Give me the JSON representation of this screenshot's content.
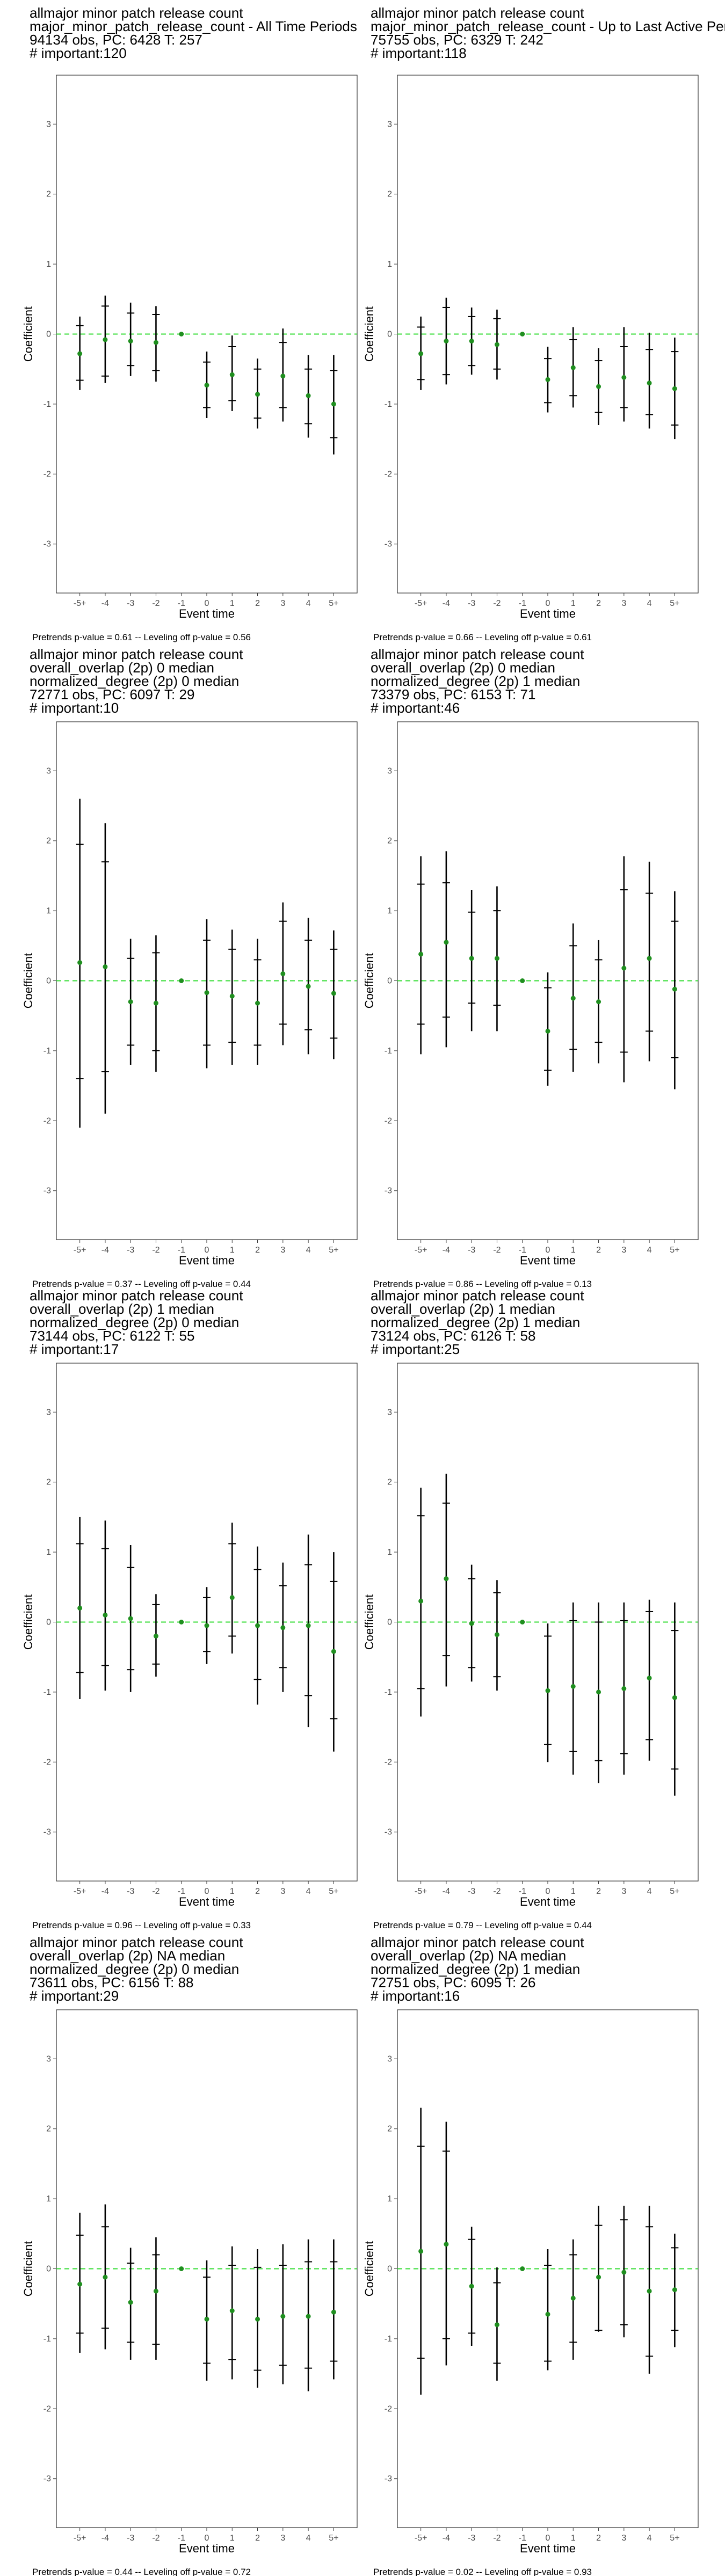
{
  "chart_data": [
    {
      "type": "scatter",
      "title_lines": [
        " allmajor minor patch release count",
        "major_minor_patch_release_count - All Time Periods",
        "94134 obs, PC: 6428 T: 257",
        "# important:120"
      ],
      "xlabel": "Event time",
      "ylabel": "Coefficient",
      "categories": [
        "-5+",
        "-4",
        "-3",
        "-2",
        "-1",
        "0",
        "1",
        "2",
        "3",
        "4",
        "5+"
      ],
      "yticks": [
        "-3",
        "-2",
        "-1",
        "0",
        "1",
        "2",
        "3"
      ],
      "ylim": [
        -3.7,
        3.7
      ],
      "caption": "Pretrends p-value = 0.61 -- Leveling off p-value = 0.56",
      "estimates": [
        -0.28,
        -0.08,
        -0.1,
        -0.12,
        0.0,
        -0.73,
        -0.58,
        -0.86,
        -0.6,
        -0.88,
        -1.0
      ],
      "ci_outer_low": [
        -0.8,
        -0.7,
        -0.6,
        -0.68,
        0.0,
        -1.2,
        -1.1,
        -1.35,
        -1.25,
        -1.48,
        -1.72
      ],
      "ci_outer_high": [
        0.25,
        0.55,
        0.45,
        0.4,
        0.0,
        -0.25,
        -0.02,
        -0.35,
        0.08,
        -0.3,
        -0.3
      ],
      "ci_inner_low": [
        -0.66,
        -0.6,
        -0.45,
        -0.52,
        0.0,
        -1.05,
        -0.95,
        -1.2,
        -1.05,
        -1.28,
        -1.48
      ],
      "ci_inner_high": [
        0.12,
        0.4,
        0.3,
        0.28,
        0.0,
        -0.4,
        -0.18,
        -0.5,
        -0.12,
        -0.5,
        -0.52
      ]
    },
    {
      "type": "scatter",
      "title_lines": [
        " allmajor minor patch release count",
        "major_minor_patch_release_count - Up to Last Active Period",
        "75755 obs, PC: 6329 T: 242",
        "# important:118"
      ],
      "xlabel": "Event time",
      "ylabel": "Coefficient",
      "categories": [
        "-5+",
        "-4",
        "-3",
        "-2",
        "-1",
        "0",
        "1",
        "2",
        "3",
        "4",
        "5+"
      ],
      "yticks": [
        "-3",
        "-2",
        "-1",
        "0",
        "1",
        "2",
        "3"
      ],
      "ylim": [
        -3.7,
        3.7
      ],
      "caption": "Pretrends p-value = 0.66 -- Leveling off p-value = 0.61",
      "estimates": [
        -0.28,
        -0.1,
        -0.1,
        -0.15,
        0.0,
        -0.65,
        -0.48,
        -0.75,
        -0.62,
        -0.7,
        -0.78
      ],
      "ci_outer_low": [
        -0.8,
        -0.72,
        -0.58,
        -0.65,
        0.0,
        -1.12,
        -1.05,
        -1.3,
        -1.25,
        -1.35,
        -1.5
      ],
      "ci_outer_high": [
        0.25,
        0.52,
        0.38,
        0.35,
        0.0,
        -0.18,
        0.1,
        -0.2,
        0.1,
        0.02,
        -0.05
      ],
      "ci_inner_low": [
        -0.65,
        -0.58,
        -0.45,
        -0.5,
        0.0,
        -0.98,
        -0.88,
        -1.12,
        -1.05,
        -1.15,
        -1.3
      ],
      "ci_inner_high": [
        0.1,
        0.38,
        0.25,
        0.22,
        0.0,
        -0.35,
        -0.08,
        -0.38,
        -0.18,
        -0.22,
        -0.25
      ]
    },
    {
      "type": "scatter",
      "title_lines": [
        " allmajor minor patch release count",
        "overall_overlap (2p) 0 median",
        "normalized_degree (2p) 0 median",
        "72771 obs, PC: 6097 T: 29",
        "# important:10"
      ],
      "xlabel": "Event time",
      "ylabel": "Coefficient",
      "categories": [
        "-5+",
        "-4",
        "-3",
        "-2",
        "-1",
        "0",
        "1",
        "2",
        "3",
        "4",
        "5+"
      ],
      "yticks": [
        "-3",
        "-2",
        "-1",
        "0",
        "1",
        "2",
        "3"
      ],
      "ylim": [
        -3.7,
        3.7
      ],
      "caption": "Pretrends p-value = 0.37 -- Leveling off p-value = 0.44",
      "estimates": [
        0.26,
        0.2,
        -0.3,
        -0.32,
        0.0,
        -0.17,
        -0.22,
        -0.32,
        0.1,
        -0.08,
        -0.18
      ],
      "ci_outer_low": [
        -2.1,
        -1.9,
        -1.2,
        -1.3,
        0.0,
        -1.25,
        -1.2,
        -1.2,
        -0.92,
        -1.05,
        -1.12
      ],
      "ci_outer_high": [
        2.6,
        2.25,
        0.6,
        0.65,
        0.0,
        0.88,
        0.73,
        0.6,
        1.12,
        0.9,
        0.72
      ],
      "ci_inner_low": [
        -1.4,
        -1.3,
        -0.92,
        -1.0,
        0.0,
        -0.92,
        -0.88,
        -0.92,
        -0.62,
        -0.7,
        -0.82
      ],
      "ci_inner_high": [
        1.95,
        1.7,
        0.32,
        0.4,
        0.0,
        0.58,
        0.45,
        0.3,
        0.85,
        0.58,
        0.45
      ]
    },
    {
      "type": "scatter",
      "title_lines": [
        " allmajor minor patch release count",
        "overall_overlap (2p) 0 median",
        "normalized_degree (2p) 1 median",
        "73379 obs, PC: 6153 T: 71",
        "# important:46"
      ],
      "xlabel": "Event time",
      "ylabel": "Coefficient",
      "categories": [
        "-5+",
        "-4",
        "-3",
        "-2",
        "-1",
        "0",
        "1",
        "2",
        "3",
        "4",
        "5+"
      ],
      "yticks": [
        "-3",
        "-2",
        "-1",
        "0",
        "1",
        "2",
        "3"
      ],
      "ylim": [
        -3.7,
        3.7
      ],
      "caption": "Pretrends p-value = 0.86 -- Leveling off p-value = 0.13",
      "estimates": [
        0.38,
        0.55,
        0.32,
        0.32,
        0.0,
        -0.72,
        -0.25,
        -0.3,
        0.18,
        0.32,
        -0.12
      ],
      "ci_outer_low": [
        -1.05,
        -0.95,
        -0.72,
        -0.72,
        0.0,
        -1.5,
        -1.3,
        -1.18,
        -1.45,
        -1.15,
        -1.55
      ],
      "ci_outer_high": [
        1.78,
        1.85,
        1.3,
        1.35,
        0.0,
        0.12,
        0.82,
        0.58,
        1.78,
        1.7,
        1.28
      ],
      "ci_inner_low": [
        -0.62,
        -0.52,
        -0.32,
        -0.35,
        0.0,
        -1.28,
        -0.98,
        -0.88,
        -1.02,
        -0.72,
        -1.1
      ],
      "ci_inner_high": [
        1.38,
        1.4,
        0.98,
        1.0,
        0.0,
        -0.1,
        0.5,
        0.3,
        1.3,
        1.25,
        0.85
      ]
    },
    {
      "type": "scatter",
      "title_lines": [
        " allmajor minor patch release count",
        "overall_overlap (2p) 1 median",
        "normalized_degree (2p) 0 median",
        "73144 obs, PC: 6122 T: 55",
        "# important:17"
      ],
      "xlabel": "Event time",
      "ylabel": "Coefficient",
      "categories": [
        "-5+",
        "-4",
        "-3",
        "-2",
        "-1",
        "0",
        "1",
        "2",
        "3",
        "4",
        "5+"
      ],
      "yticks": [
        "-3",
        "-2",
        "-1",
        "0",
        "1",
        "2",
        "3"
      ],
      "ylim": [
        -3.7,
        3.7
      ],
      "caption": "Pretrends p-value = 0.96 -- Leveling off p-value = 0.33",
      "estimates": [
        0.2,
        0.1,
        0.05,
        -0.2,
        0.0,
        -0.05,
        0.35,
        -0.05,
        -0.08,
        -0.05,
        -0.42
      ],
      "ci_outer_low": [
        -1.1,
        -0.98,
        -1.0,
        -0.78,
        0.0,
        -0.6,
        -0.45,
        -1.18,
        -1.0,
        -1.5,
        -1.85
      ],
      "ci_outer_high": [
        1.5,
        1.45,
        1.1,
        0.4,
        0.0,
        0.5,
        1.42,
        1.08,
        0.85,
        1.25,
        1.0
      ],
      "ci_inner_low": [
        -0.72,
        -0.62,
        -0.68,
        -0.6,
        0.0,
        -0.42,
        -0.2,
        -0.82,
        -0.65,
        -1.05,
        -1.38
      ],
      "ci_inner_high": [
        1.12,
        1.05,
        0.78,
        0.25,
        0.0,
        0.35,
        1.12,
        0.75,
        0.52,
        0.82,
        0.58
      ]
    },
    {
      "type": "scatter",
      "title_lines": [
        " allmajor minor patch release count",
        "overall_overlap (2p) 1 median",
        "normalized_degree (2p) 1 median",
        "73124 obs, PC: 6126 T: 58",
        "# important:25"
      ],
      "xlabel": "Event time",
      "ylabel": "Coefficient",
      "categories": [
        "-5+",
        "-4",
        "-3",
        "-2",
        "-1",
        "0",
        "1",
        "2",
        "3",
        "4",
        "5+"
      ],
      "yticks": [
        "-3",
        "-2",
        "-1",
        "0",
        "1",
        "2",
        "3"
      ],
      "ylim": [
        -3.7,
        3.7
      ],
      "caption": "Pretrends p-value = 0.79 -- Leveling off p-value = 0.44",
      "estimates": [
        0.3,
        0.62,
        -0.02,
        -0.18,
        0.0,
        -0.98,
        -0.92,
        -1.0,
        -0.95,
        -0.8,
        -1.08
      ],
      "ci_outer_low": [
        -1.35,
        -0.92,
        -0.85,
        -0.98,
        0.0,
        -2.0,
        -2.18,
        -2.3,
        -2.18,
        -1.98,
        -2.48
      ],
      "ci_outer_high": [
        1.92,
        2.12,
        0.82,
        0.6,
        0.0,
        -0.02,
        0.28,
        0.28,
        0.28,
        0.32,
        0.28
      ],
      "ci_inner_low": [
        -0.95,
        -0.48,
        -0.65,
        -0.78,
        0.0,
        -1.75,
        -1.85,
        -1.98,
        -1.88,
        -1.68,
        -2.1
      ],
      "ci_inner_high": [
        1.52,
        1.7,
        0.62,
        0.42,
        0.0,
        -0.2,
        0.02,
        0.0,
        0.02,
        0.15,
        -0.12
      ]
    },
    {
      "type": "scatter",
      "title_lines": [
        " allmajor minor patch release count",
        "overall_overlap (2p) NA median",
        "normalized_degree (2p) 0 median",
        "73611 obs, PC: 6156 T: 88",
        "# important:29"
      ],
      "xlabel": "Event time",
      "ylabel": "Coefficient",
      "categories": [
        "-5+",
        "-4",
        "-3",
        "-2",
        "-1",
        "0",
        "1",
        "2",
        "3",
        "4",
        "5+"
      ],
      "yticks": [
        "-3",
        "-2",
        "-1",
        "0",
        "1",
        "2",
        "3"
      ],
      "ylim": [
        -3.7,
        3.7
      ],
      "caption": "Pretrends p-value = 0.44 -- Leveling off p-value = 0.72",
      "estimates": [
        -0.22,
        -0.12,
        -0.48,
        -0.32,
        0.0,
        -0.72,
        -0.6,
        -0.72,
        -0.68,
        -0.68,
        -0.62
      ],
      "ci_outer_low": [
        -1.2,
        -1.15,
        -1.3,
        -1.3,
        0.0,
        -1.6,
        -1.58,
        -1.7,
        -1.65,
        -1.75,
        -1.58
      ],
      "ci_outer_high": [
        0.8,
        0.92,
        0.3,
        0.45,
        0.0,
        0.12,
        0.32,
        0.28,
        0.35,
        0.42,
        0.42
      ],
      "ci_inner_low": [
        -0.92,
        -0.85,
        -1.05,
        -1.08,
        0.0,
        -1.35,
        -1.3,
        -1.45,
        -1.38,
        -1.42,
        -1.32
      ],
      "ci_inner_high": [
        0.48,
        0.6,
        0.08,
        0.2,
        0.0,
        -0.12,
        0.05,
        0.02,
        0.05,
        0.1,
        0.1
      ]
    },
    {
      "type": "scatter",
      "title_lines": [
        " allmajor minor patch release count",
        "overall_overlap (2p) NA median",
        "normalized_degree (2p) 1 median",
        "72751 obs, PC: 6095 T: 26",
        "# important:16"
      ],
      "xlabel": "Event time",
      "ylabel": "Coefficient",
      "categories": [
        "-5+",
        "-4",
        "-3",
        "-2",
        "-1",
        "0",
        "1",
        "2",
        "3",
        "4",
        "5+"
      ],
      "yticks": [
        "-3",
        "-2",
        "-1",
        "0",
        "1",
        "2",
        "3"
      ],
      "ylim": [
        -3.7,
        3.7
      ],
      "caption": "Pretrends p-value = 0.02 -- Leveling off p-value = 0.93",
      "estimates": [
        0.25,
        0.35,
        -0.25,
        -0.8,
        0.0,
        -0.65,
        -0.42,
        -0.12,
        -0.05,
        -0.32,
        -0.3
      ],
      "ci_outer_low": [
        -1.8,
        -1.38,
        -1.1,
        -1.6,
        0.0,
        -1.45,
        -1.3,
        -0.9,
        -0.98,
        -1.5,
        -1.12
      ],
      "ci_outer_high": [
        2.3,
        2.1,
        0.6,
        0.02,
        0.0,
        0.28,
        0.42,
        0.9,
        0.9,
        0.9,
        0.5
      ],
      "ci_inner_low": [
        -1.28,
        -1.0,
        -0.92,
        -1.35,
        0.0,
        -1.32,
        -1.05,
        -0.88,
        -0.8,
        -1.25,
        -0.88
      ],
      "ci_inner_high": [
        1.75,
        1.68,
        0.42,
        -0.2,
        0.0,
        0.05,
        0.2,
        0.62,
        0.7,
        0.6,
        0.3
      ]
    }
  ],
  "colors": {
    "point": "#1f8f1f",
    "zero_line": "#33dd33",
    "ci": "#000000",
    "panel_border": "#333333",
    "tick_text": "#4d4d4d"
  }
}
